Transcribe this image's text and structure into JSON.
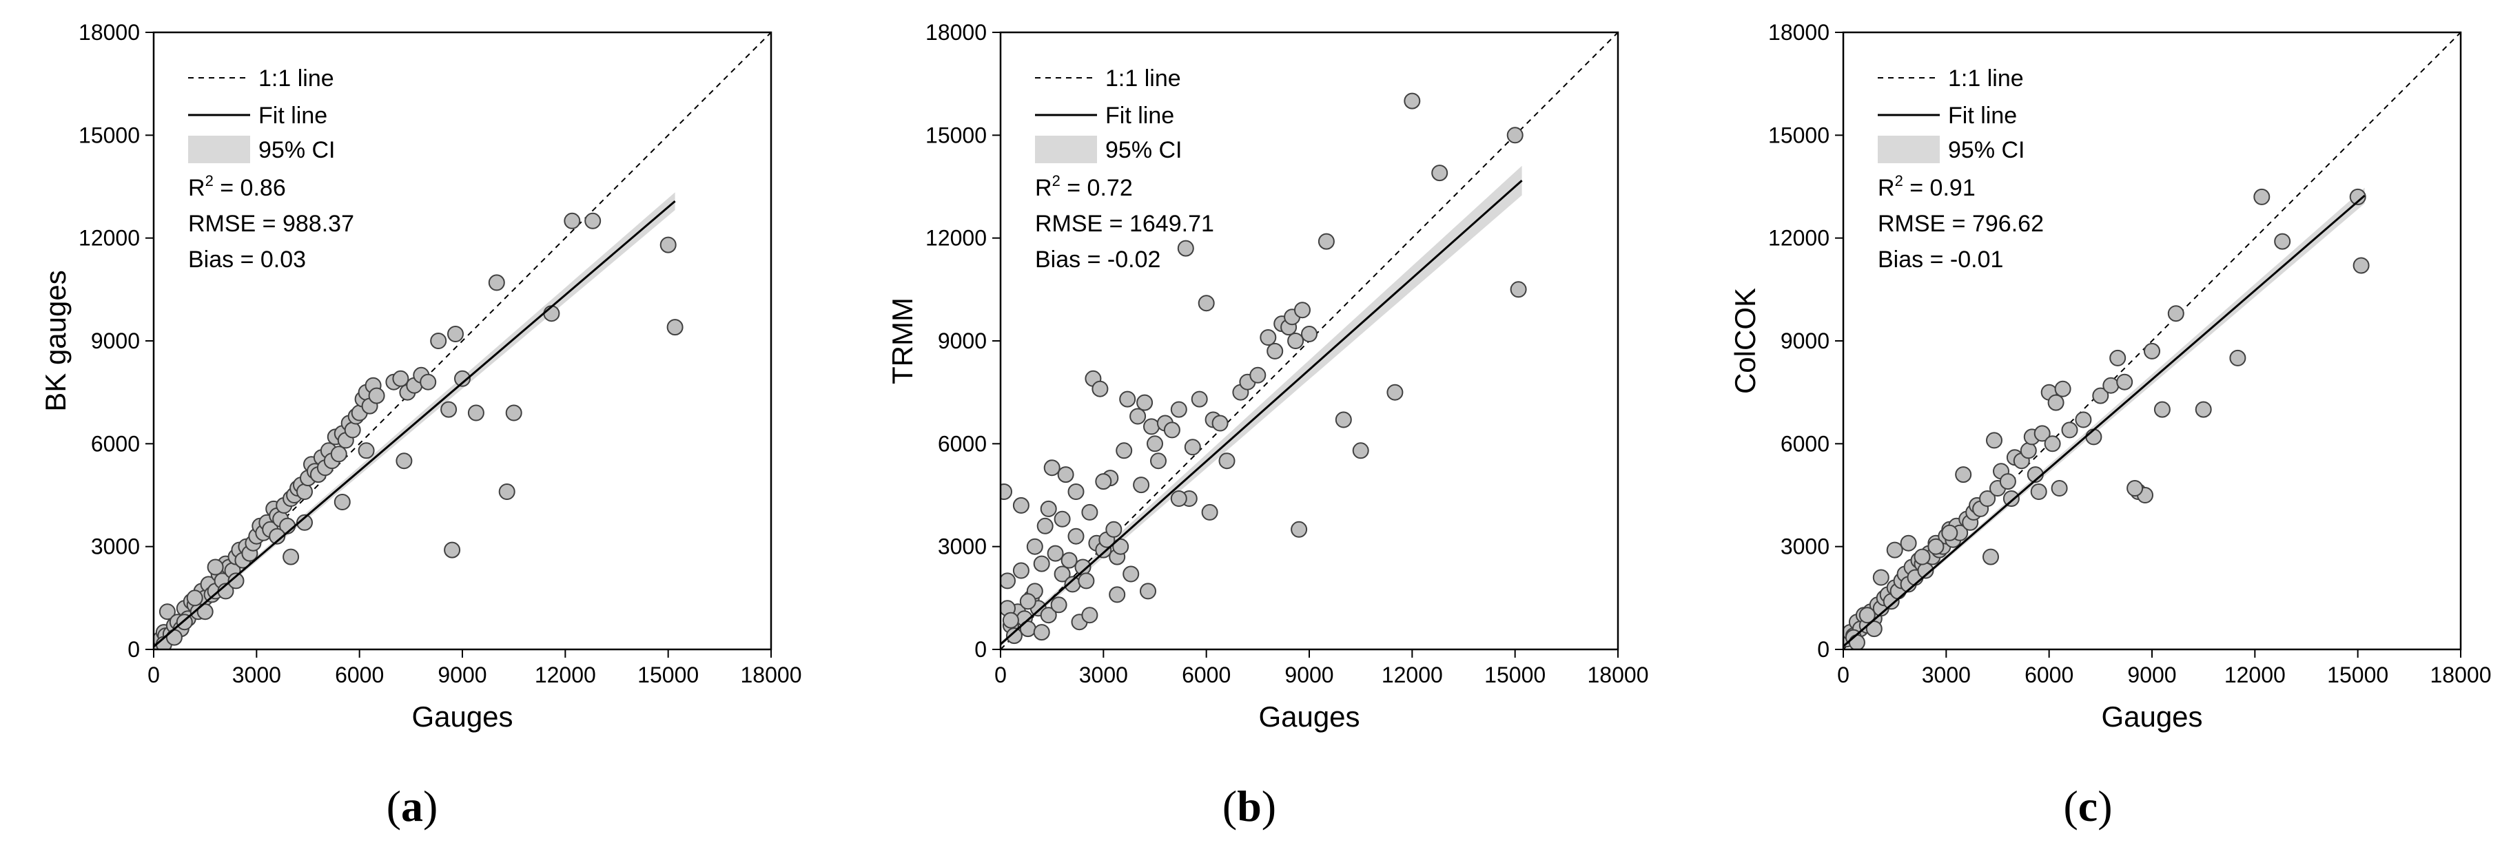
{
  "figure": {
    "panel_labels": [
      {
        "open": "(",
        "letter": "a",
        "close": ")"
      },
      {
        "open": "(",
        "letter": "b",
        "close": ")"
      },
      {
        "open": "(",
        "letter": "c",
        "close": ")"
      }
    ]
  },
  "chart_data": [
    {
      "type": "scatter",
      "title": "",
      "xlabel": "Gauges",
      "ylabel": "BK gauges",
      "xlim": [
        0,
        18000
      ],
      "ylim": [
        0,
        18000
      ],
      "xticks": [
        0,
        3000,
        6000,
        9000,
        12000,
        15000,
        18000
      ],
      "yticks": [
        0,
        3000,
        6000,
        9000,
        12000,
        15000,
        18000
      ],
      "tick_labels": [
        "0",
        "3000",
        "6000",
        "9000",
        "12000",
        "15000",
        "18000"
      ],
      "legend": {
        "items": [
          "1:1 line",
          "Fit line",
          "95% CI"
        ],
        "position": "top-left"
      },
      "stats": {
        "r2_prefix": "R",
        "r2_sup": "2",
        "r2_value": " = 0.86",
        "rmse": "RMSE = 988.37",
        "bias": "Bias = 0.03"
      },
      "fit": {
        "slope": 0.855,
        "intercept": 80,
        "ci_half_width": [
          40,
          260
        ]
      },
      "colors": {
        "marker_fill": "#bfbfbf",
        "marker_edge": "#404040",
        "ci_fill": "#d9d9d9"
      },
      "x": [
        100,
        200,
        300,
        350,
        400,
        500,
        600,
        700,
        800,
        900,
        1000,
        1100,
        1200,
        1300,
        1400,
        1500,
        1600,
        1700,
        1800,
        1900,
        2000,
        2100,
        2200,
        2300,
        2400,
        2500,
        2600,
        2700,
        2800,
        2900,
        3000,
        3100,
        3200,
        3300,
        3400,
        3500,
        3600,
        3700,
        3800,
        3900,
        4000,
        4100,
        4200,
        4300,
        4400,
        4500,
        4600,
        4700,
        4800,
        4900,
        5000,
        5100,
        5200,
        5300,
        5400,
        5500,
        5600,
        5700,
        5800,
        5900,
        6000,
        6100,
        6200,
        6300,
        6400,
        6500,
        7000,
        7200,
        7400,
        7600,
        7800,
        8000,
        8300,
        8600,
        8800,
        9000,
        9400,
        10000,
        10300,
        10500,
        11600,
        12200,
        12800,
        15000,
        15200,
        300,
        600,
        900,
        1200,
        1500,
        1800,
        2100,
        2400,
        3600,
        4000,
        4400,
        5500,
        6200,
        7300,
        8700
      ],
      "y": [
        200,
        300,
        500,
        400,
        1100,
        450,
        700,
        800,
        600,
        1200,
        900,
        1400,
        1300,
        1100,
        1700,
        1500,
        1900,
        1600,
        1700,
        2200,
        2000,
        2500,
        2400,
        2300,
        2700,
        2900,
        2600,
        3000,
        2800,
        3100,
        3300,
        3600,
        3400,
        3700,
        3500,
        4100,
        3900,
        3800,
        4200,
        3600,
        4400,
        4500,
        4700,
        4800,
        4600,
        5000,
        5400,
        5200,
        5100,
        5600,
        5300,
        5800,
        5500,
        6200,
        5700,
        6300,
        6100,
        6600,
        6400,
        6800,
        6900,
        7300,
        7500,
        7100,
        7700,
        7400,
        7800,
        7900,
        7500,
        7700,
        8000,
        7800,
        9000,
        7000,
        9200,
        7900,
        6900,
        10700,
        4600,
        6900,
        9800,
        12500,
        12500,
        11800,
        9400,
        150,
        350,
        800,
        1500,
        1100,
        2400,
        1700,
        2000,
        3300,
        2700,
        3700,
        4300,
        5800,
        5500,
        2900
      ]
    },
    {
      "type": "scatter",
      "title": "",
      "xlabel": "Gauges",
      "ylabel": "TRMM",
      "xlim": [
        0,
        18000
      ],
      "ylim": [
        0,
        18000
      ],
      "xticks": [
        0,
        3000,
        6000,
        9000,
        12000,
        15000,
        18000
      ],
      "yticks": [
        0,
        3000,
        6000,
        9000,
        12000,
        15000,
        18000
      ],
      "tick_labels": [
        "0",
        "3000",
        "6000",
        "9000",
        "12000",
        "15000",
        "18000"
      ],
      "legend": {
        "items": [
          "1:1 line",
          "Fit line",
          "95% CI"
        ],
        "position": "top-left"
      },
      "stats": {
        "r2_prefix": "R",
        "r2_sup": "2",
        "r2_value": " = 0.72",
        "rmse": "RMSE = 1649.71",
        "bias": "Bias = -0.02"
      },
      "fit": {
        "slope": 0.89,
        "intercept": 150,
        "ci_half_width": [
          60,
          430
        ]
      },
      "colors": {
        "marker_fill": "#bfbfbf",
        "marker_edge": "#404040",
        "ci_fill": "#d9d9d9"
      },
      "x": [
        100,
        200,
        300,
        400,
        500,
        600,
        700,
        800,
        900,
        1000,
        1100,
        1200,
        1300,
        1400,
        1500,
        1600,
        1700,
        1800,
        1900,
        2000,
        2100,
        2200,
        2300,
        2400,
        2500,
        2600,
        2700,
        2800,
        2900,
        3000,
        3100,
        3200,
        3300,
        3400,
        3500,
        3600,
        3700,
        3800,
        4000,
        4200,
        4400,
        4500,
        4600,
        4800,
        5000,
        5200,
        5400,
        5500,
        5600,
        5800,
        6000,
        6200,
        6400,
        6600,
        7000,
        7200,
        7500,
        7800,
        8000,
        8200,
        8400,
        8500,
        8600,
        8800,
        9000,
        9500,
        10000,
        10500,
        11500,
        12000,
        12800,
        15000,
        15100,
        200,
        600,
        1000,
        1400,
        1800,
        2200,
        2600,
        3000,
        3400,
        4100,
        5200,
        6100,
        8700,
        300,
        800,
        1200,
        4300
      ],
      "y": [
        4600,
        2000,
        700,
        400,
        1100,
        4200,
        900,
        600,
        1500,
        1700,
        1200,
        2500,
        3600,
        1000,
        5300,
        2800,
        1300,
        2200,
        5100,
        2600,
        1900,
        3300,
        800,
        2400,
        2000,
        1000,
        7900,
        3100,
        7600,
        2900,
        3200,
        5000,
        3500,
        2700,
        3000,
        5800,
        7300,
        2200,
        6800,
        7200,
        6500,
        6000,
        5500,
        6600,
        6400,
        7000,
        11700,
        4400,
        5900,
        7300,
        10100,
        6700,
        6600,
        5500,
        7500,
        7800,
        8000,
        9100,
        8700,
        9500,
        9400,
        9700,
        9000,
        9900,
        9200,
        11900,
        6700,
        5800,
        7500,
        16000,
        13900,
        15000,
        10500,
        1200,
        2300,
        3000,
        4100,
        3800,
        4600,
        4000,
        4900,
        1600,
        4800,
        4400,
        4000,
        3500,
        850,
        1400,
        500,
        1700
      ]
    },
    {
      "type": "scatter",
      "title": "",
      "xlabel": "Gauges",
      "ylabel": "ColCOK",
      "xlim": [
        0,
        18000
      ],
      "ylim": [
        0,
        18000
      ],
      "xticks": [
        0,
        3000,
        6000,
        9000,
        12000,
        15000,
        18000
      ],
      "yticks": [
        0,
        3000,
        6000,
        9000,
        12000,
        15000,
        18000
      ],
      "tick_labels": [
        "0",
        "3000",
        "6000",
        "9000",
        "12000",
        "15000",
        "18000"
      ],
      "legend": {
        "items": [
          "1:1 line",
          "Fit line",
          "95% CI"
        ],
        "position": "top-left"
      },
      "stats": {
        "r2_prefix": "R",
        "r2_sup": "2",
        "r2_value": " = 0.91",
        "rmse": "RMSE = 796.62",
        "bias": "Bias = -0.01"
      },
      "fit": {
        "slope": 0.865,
        "intercept": 90,
        "ci_half_width": [
          35,
          230
        ]
      },
      "colors": {
        "marker_fill": "#bfbfbf",
        "marker_edge": "#404040",
        "ci_fill": "#d9d9d9"
      },
      "x": [
        100,
        200,
        300,
        400,
        500,
        600,
        700,
        800,
        900,
        1000,
        1100,
        1200,
        1300,
        1400,
        1500,
        1600,
        1700,
        1800,
        1900,
        2000,
        2100,
        2200,
        2300,
        2400,
        2500,
        2600,
        2700,
        2800,
        2900,
        3000,
        3100,
        3200,
        3300,
        3400,
        3500,
        3600,
        3700,
        3800,
        3900,
        4000,
        4200,
        4400,
        4500,
        4600,
        4800,
        5000,
        5200,
        5400,
        5500,
        5600,
        5800,
        6000,
        6100,
        6200,
        6400,
        6600,
        7000,
        7300,
        7500,
        7800,
        8000,
        8200,
        8600,
        8800,
        9000,
        9300,
        9700,
        10500,
        11500,
        12200,
        12800,
        15000,
        15100,
        300,
        700,
        1100,
        1500,
        1900,
        2300,
        2700,
        3100,
        4300,
        4900,
        5700,
        6300,
        8500,
        400,
        900
      ],
      "y": [
        300,
        500,
        400,
        800,
        600,
        1000,
        700,
        1100,
        900,
        1300,
        1200,
        1500,
        1600,
        1400,
        1800,
        1700,
        2000,
        2200,
        1900,
        2400,
        2100,
        2600,
        2500,
        2300,
        2800,
        2700,
        3100,
        2900,
        3000,
        3300,
        3500,
        3200,
        3600,
        3400,
        5100,
        3800,
        3700,
        4000,
        4200,
        4100,
        4400,
        6100,
        4700,
        5200,
        4900,
        5600,
        5500,
        5800,
        6200,
        5100,
        6300,
        7500,
        6000,
        7200,
        7600,
        6400,
        6700,
        6200,
        7400,
        7700,
        8500,
        7800,
        4600,
        4500,
        8700,
        7000,
        9800,
        7000,
        8500,
        13200,
        11900,
        13200,
        11200,
        350,
        1000,
        2100,
        2900,
        3100,
        2700,
        3000,
        3400,
        2700,
        4400,
        4600,
        4700,
        4700,
        200,
        600
      ]
    }
  ]
}
